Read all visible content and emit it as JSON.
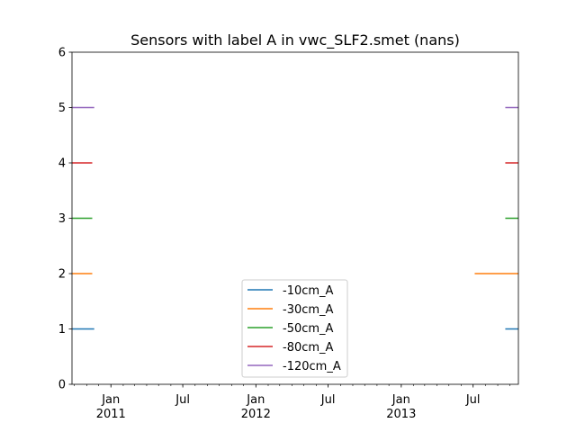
{
  "chart_data": {
    "type": "line",
    "title": "Sensors with label A in vwc_SLF2.smet (nans)",
    "xlabel": "",
    "ylabel": "",
    "xlim": [
      "2010-09-25",
      "2013-10-23"
    ],
    "ylim": [
      0,
      6
    ],
    "y_ticks": [
      0,
      1,
      2,
      3,
      4,
      5,
      6
    ],
    "x_ticks": [
      {
        "date": "2011-01-01",
        "label": "Jan",
        "year": "2011"
      },
      {
        "date": "2011-07-01",
        "label": "Jul",
        "year": ""
      },
      {
        "date": "2012-01-01",
        "label": "Jan",
        "year": "2012"
      },
      {
        "date": "2012-07-01",
        "label": "Jul",
        "year": ""
      },
      {
        "date": "2013-01-01",
        "label": "Jan",
        "year": "2013"
      },
      {
        "date": "2013-07-01",
        "label": "Jul",
        "year": ""
      }
    ],
    "grid": false,
    "legend_position": "lower-center",
    "series": [
      {
        "name": "-10cm_A",
        "color": "#1f77b4",
        "segments": [
          {
            "x": [
              "2010-09-25",
              "2010-11-20"
            ],
            "y": 1
          },
          {
            "x": [
              "2013-09-20",
              "2013-10-23"
            ],
            "y": 1
          }
        ]
      },
      {
        "name": "-30cm_A",
        "color": "#ff7f0e",
        "segments": [
          {
            "x": [
              "2010-09-25",
              "2010-11-15"
            ],
            "y": 2
          },
          {
            "x": [
              "2013-07-05",
              "2013-10-23"
            ],
            "y": 2
          }
        ]
      },
      {
        "name": "-50cm_A",
        "color": "#2ca02c",
        "segments": [
          {
            "x": [
              "2010-09-25",
              "2010-11-15"
            ],
            "y": 3
          },
          {
            "x": [
              "2013-09-20",
              "2013-10-23"
            ],
            "y": 3
          }
        ]
      },
      {
        "name": "-80cm_A",
        "color": "#d62728",
        "segments": [
          {
            "x": [
              "2010-09-25",
              "2010-11-15"
            ],
            "y": 4
          },
          {
            "x": [
              "2013-09-20",
              "2013-10-23"
            ],
            "y": 4
          }
        ]
      },
      {
        "name": "-120cm_A",
        "color": "#9467bd",
        "segments": [
          {
            "x": [
              "2010-09-25",
              "2010-11-20"
            ],
            "y": 5
          },
          {
            "x": [
              "2013-09-20",
              "2013-10-23"
            ],
            "y": 5
          }
        ]
      }
    ]
  }
}
